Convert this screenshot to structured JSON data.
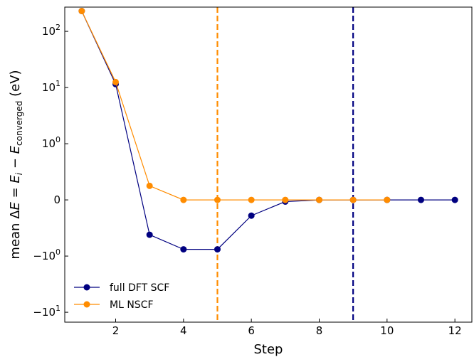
{
  "chart_data": {
    "type": "line",
    "title": "",
    "xlabel": "Step",
    "ylabel": {
      "prefix": "mean ",
      "delta": "Δ",
      "E": "E",
      "eq": " = ",
      "Ei": "E",
      "i_sub": "i",
      "minus": " − ",
      "Ec": "E",
      "conv_sub": "converged",
      "unit": " (eV)"
    },
    "y_scale": "symlog",
    "y_linthresh": 1,
    "xlim": [
      0.5,
      12.5
    ],
    "ylim": [
      -15,
      270
    ],
    "x_ticks": [
      {
        "value": 2,
        "label": "2"
      },
      {
        "value": 4,
        "label": "4"
      },
      {
        "value": 6,
        "label": "6"
      },
      {
        "value": 8,
        "label": "8"
      },
      {
        "value": 10,
        "label": "10"
      },
      {
        "value": 12,
        "label": "12"
      }
    ],
    "y_ticks": [
      {
        "value": 100,
        "base": "10",
        "exp": "2",
        "sign": ""
      },
      {
        "value": 10,
        "base": "10",
        "exp": "1",
        "sign": ""
      },
      {
        "value": 1,
        "base": "10",
        "exp": "0",
        "sign": ""
      },
      {
        "value": 0,
        "base": "0",
        "exp": "",
        "sign": ""
      },
      {
        "value": -1,
        "base": "10",
        "exp": "0",
        "sign": "−"
      },
      {
        "value": -10,
        "base": "10",
        "exp": "1",
        "sign": "−"
      }
    ],
    "series": [
      {
        "name": "full DFT SCF",
        "color": "#000080",
        "x": [
          1,
          2,
          3,
          4,
          5,
          6,
          7,
          8,
          9,
          10,
          11,
          12
        ],
        "y": [
          230,
          11.5,
          -0.62,
          -0.88,
          -0.88,
          -0.28,
          -0.03,
          0.0,
          0.0,
          0.0,
          0.0,
          0.0
        ]
      },
      {
        "name": "ML NSCF",
        "color": "#ff8c00",
        "x": [
          1,
          2,
          3,
          4,
          5,
          6,
          7,
          8,
          9,
          10
        ],
        "y": [
          230,
          12.5,
          0.25,
          0.0,
          0.0,
          0.0,
          0.0,
          0.0,
          0.0,
          0.0
        ]
      }
    ],
    "vlines": [
      {
        "x": 5,
        "color": "#ff8c00",
        "style": "dashed"
      },
      {
        "x": 9,
        "color": "#000080",
        "style": "dashed"
      }
    ],
    "legend_position": "lower-left",
    "grid": false
  }
}
